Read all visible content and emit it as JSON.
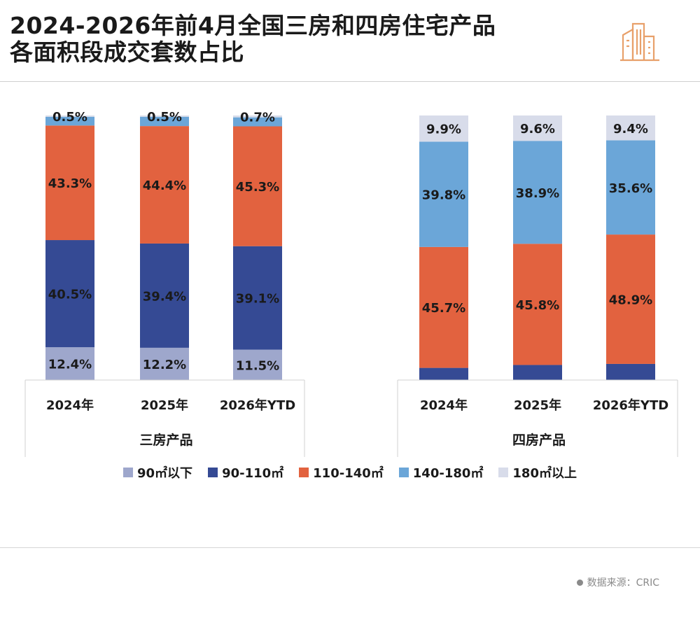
{
  "title": {
    "line1": "2024-2026年前4月全国三房和四房住宅产品",
    "line2": "各面积段成交套数占比"
  },
  "source": "数据来源：CRIC",
  "colors": {
    "s90_below": "#9ea7cc",
    "s90_110": "#354a94",
    "s110_140": "#e2623f",
    "s140_180": "#6ba6d8",
    "s180_above": "#d8dcea"
  },
  "chart_data": [
    {
      "type": "bar",
      "stacked": true,
      "group_label": "三房产品",
      "categories": [
        "2024年",
        "2025年",
        "2026年YTD"
      ],
      "series": [
        {
          "name": "90㎡以下",
          "values": [
            12.4,
            12.2,
            11.5
          ]
        },
        {
          "name": "90-110㎡",
          "values": [
            40.5,
            39.4,
            39.1
          ]
        },
        {
          "name": "110-140㎡",
          "values": [
            43.3,
            44.4,
            45.3
          ]
        },
        {
          "name": "140-180㎡",
          "values": [
            3.3,
            3.5,
            3.4
          ]
        },
        {
          "name": "180㎡以上",
          "values": [
            0.5,
            0.5,
            0.7
          ]
        }
      ],
      "labels": {
        "90㎡以下": [
          "12.4%",
          "12.2%",
          "11.5%"
        ],
        "90-110㎡": [
          "40.5%",
          "39.4%",
          "39.1%"
        ],
        "110-140㎡": [
          "43.3%",
          "44.4%",
          "45.3%"
        ],
        "140-180㎡": [
          "",
          "",
          ""
        ],
        "180㎡以上": [
          "0.5%",
          "0.5%",
          "0.7%"
        ]
      },
      "ylim": [
        0,
        100
      ]
    },
    {
      "type": "bar",
      "stacked": true,
      "group_label": "四房产品",
      "categories": [
        "2024年",
        "2025年",
        "2026年YTD"
      ],
      "series": [
        {
          "name": "90㎡以下",
          "values": [
            0.1,
            0.1,
            0.1
          ]
        },
        {
          "name": "90-110㎡",
          "values": [
            4.5,
            5.6,
            6.0
          ]
        },
        {
          "name": "110-140㎡",
          "values": [
            45.7,
            45.8,
            48.9
          ]
        },
        {
          "name": "140-180㎡",
          "values": [
            39.8,
            38.9,
            35.6
          ]
        },
        {
          "name": "180㎡以上",
          "values": [
            9.9,
            9.6,
            9.4
          ]
        }
      ],
      "labels": {
        "90㎡以下": [
          "",
          "",
          ""
        ],
        "90-110㎡": [
          "",
          "",
          ""
        ],
        "110-140㎡": [
          "45.7%",
          "45.8%",
          "48.9%"
        ],
        "140-180㎡": [
          "39.8%",
          "38.9%",
          "35.6%"
        ],
        "180㎡以上": [
          "9.9%",
          "9.6%",
          "9.4%"
        ]
      },
      "ylim": [
        0,
        100
      ]
    }
  ],
  "legend": [
    "90㎡以下",
    "90-110㎡",
    "110-140㎡",
    "140-180㎡",
    "180㎡以上"
  ]
}
